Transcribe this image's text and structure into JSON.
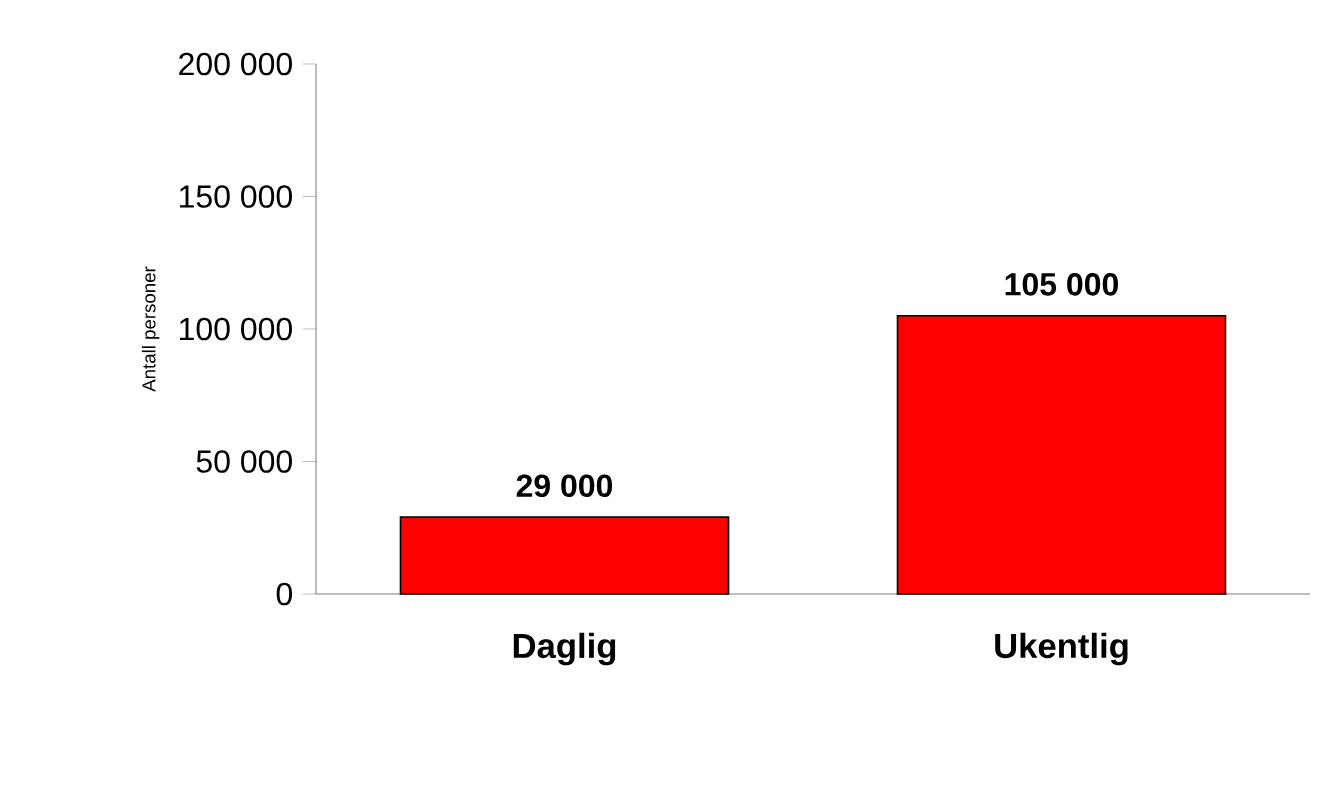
{
  "chart_data": {
    "type": "bar",
    "ylabel": "Antall personer",
    "categories": [
      "Daglig",
      "Ukentlig"
    ],
    "values": [
      29000,
      105000
    ],
    "value_labels": [
      "29 000",
      "105 000"
    ],
    "color": "#ff0000",
    "ylim": [
      0,
      200000
    ],
    "yticks": [
      {
        "value": 0,
        "label": "0"
      },
      {
        "value": 50000,
        "label": "50 000"
      },
      {
        "value": 100000,
        "label": "100 000"
      },
      {
        "value": 150000,
        "label": "150 000"
      },
      {
        "value": 200000,
        "label": "200 000"
      }
    ],
    "grid": false
  }
}
